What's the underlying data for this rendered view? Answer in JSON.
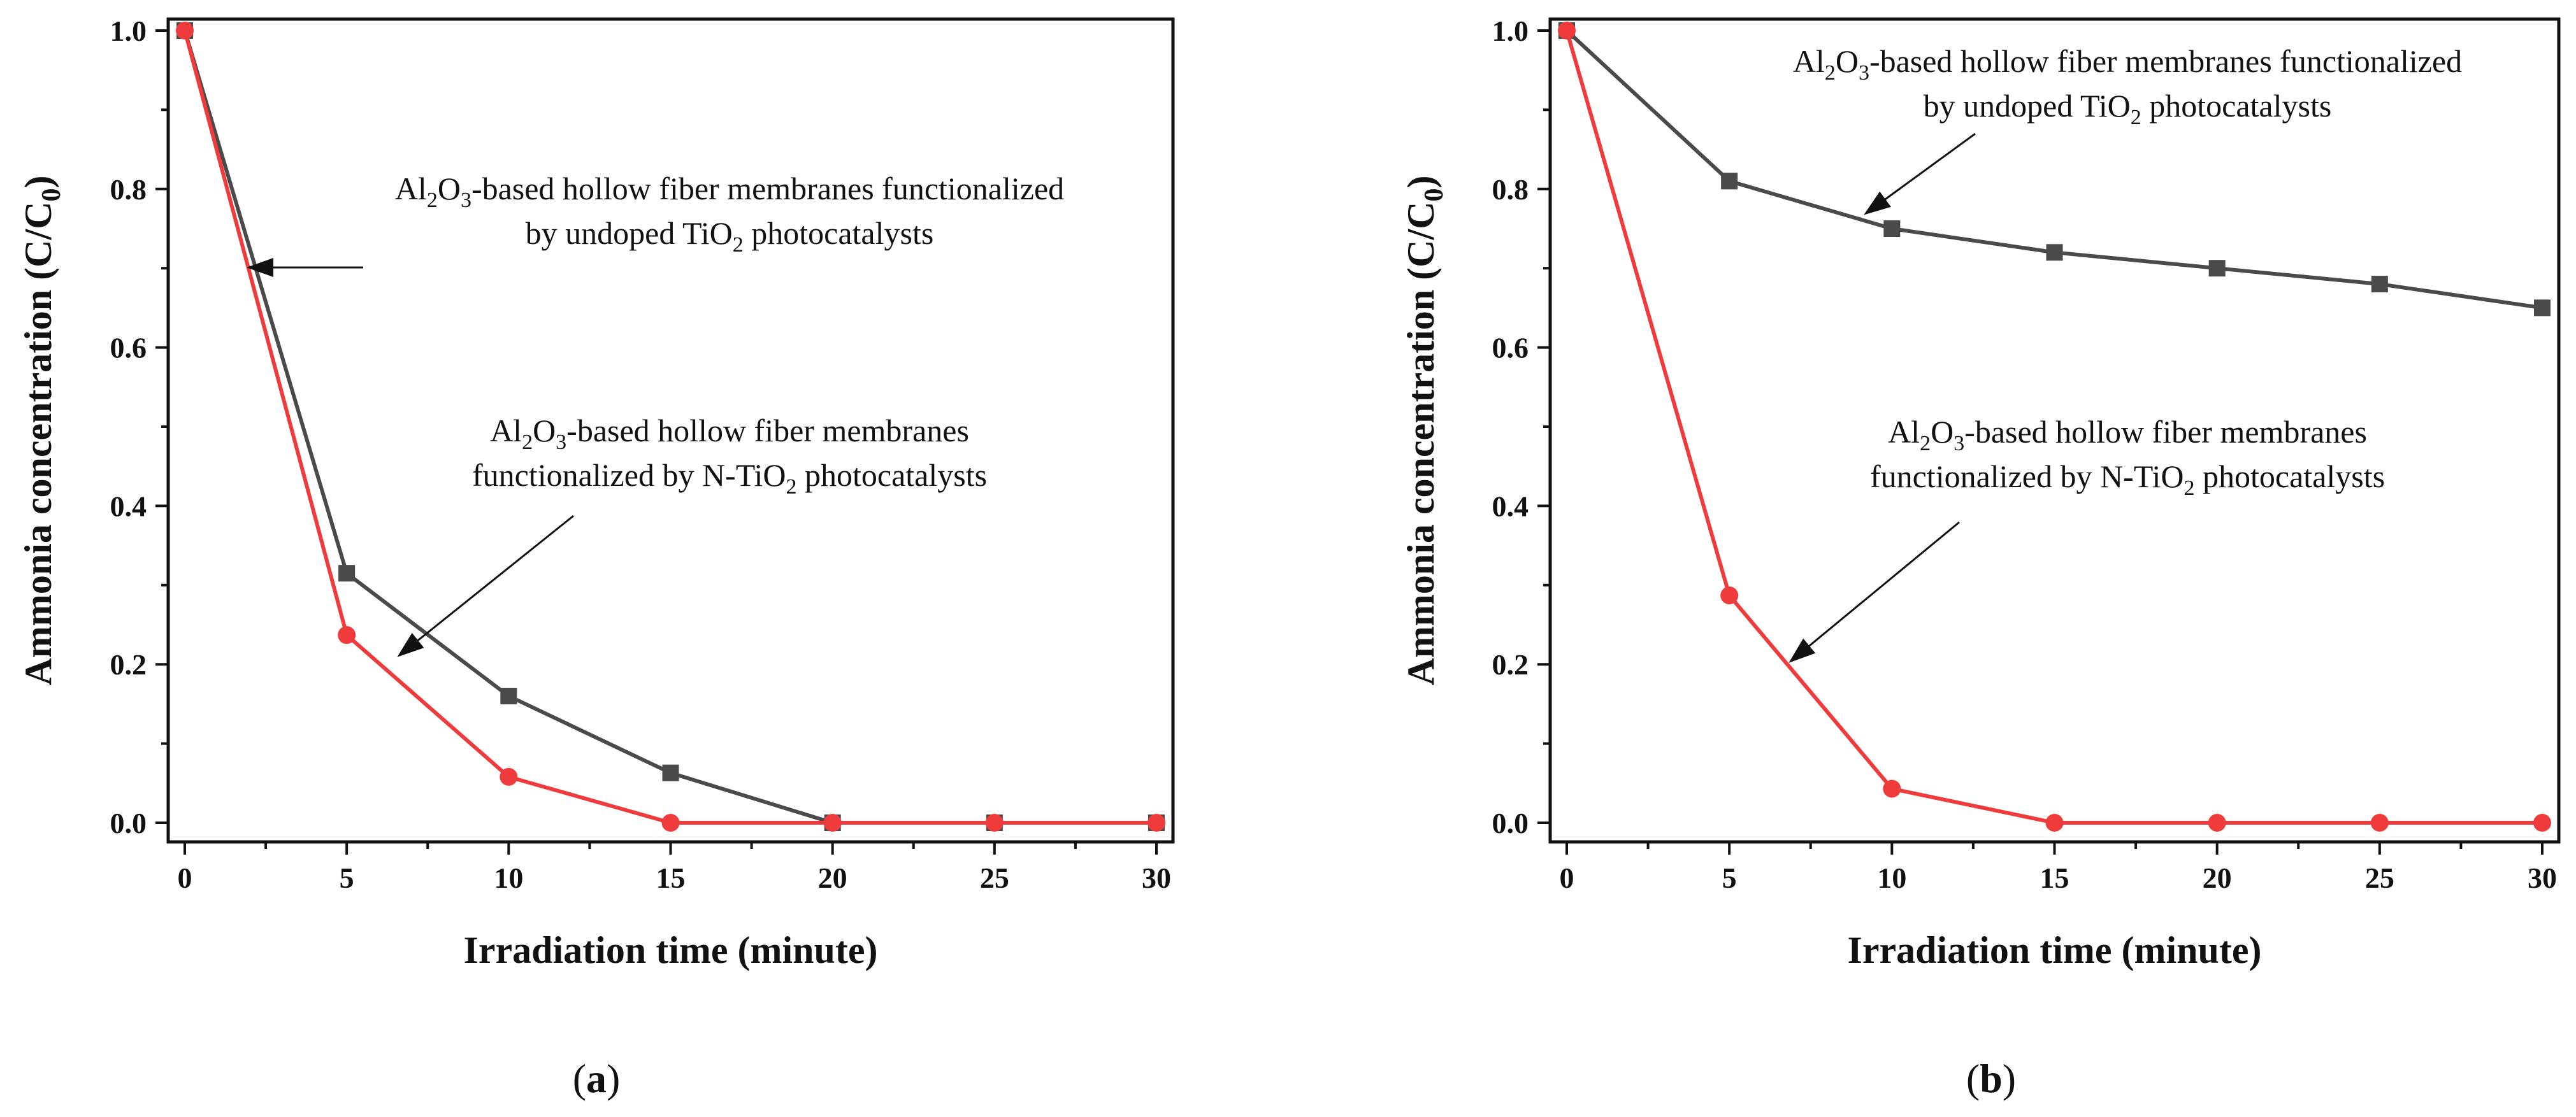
{
  "chart_data": [
    {
      "panel": "a",
      "type": "line",
      "x": [
        0,
        5,
        10,
        15,
        20,
        25,
        30
      ],
      "xlim": [
        0,
        30
      ],
      "ylim": [
        0,
        1.0
      ],
      "xticks": [
        "0",
        "5",
        "10",
        "15",
        "20",
        "25",
        "30"
      ],
      "yticks": [
        "0.0",
        "0.2",
        "0.4",
        "0.6",
        "0.8",
        "1.0"
      ],
      "xlabel": "Irradiation time (minute)",
      "ylabel": "Ammonia concentration (C/C",
      "ylabel_sub": "0",
      "ylabel_end": ")",
      "series": [
        {
          "name": "undoped TiO2",
          "color": "#4a4a4a",
          "marker": "square",
          "values": [
            1.0,
            0.315,
            0.16,
            0.063,
            0.0,
            0.0,
            0.0
          ]
        },
        {
          "name": "N-TiO2",
          "color": "#ef3b3b",
          "marker": "circle",
          "values": [
            1.0,
            0.237,
            0.058,
            0.0,
            0.0,
            0.0,
            0.0
          ]
        }
      ],
      "annotations": [
        {
          "line1": [
            "Al",
            "2",
            "O",
            "3",
            "-based hollow fiber membranes functionalized"
          ],
          "line2": [
            "by undoped TiO",
            "2",
            " photocatalysts"
          ]
        },
        {
          "line1": [
            "Al",
            "2",
            "O",
            "3",
            "-based hollow fiber membranes"
          ],
          "line2": [
            "functionalized by N-TiO",
            "2",
            " photocatalysts"
          ]
        }
      ],
      "panel_label": "a"
    },
    {
      "panel": "b",
      "type": "line",
      "x": [
        0,
        5,
        10,
        15,
        20,
        25,
        30
      ],
      "xlim": [
        0,
        30
      ],
      "ylim": [
        0,
        1.0
      ],
      "xticks": [
        "0",
        "5",
        "10",
        "15",
        "20",
        "25",
        "30"
      ],
      "yticks": [
        "0.0",
        "0.2",
        "0.4",
        "0.6",
        "0.8",
        "1.0"
      ],
      "xlabel": "Irradiation time (minute)",
      "ylabel": "Ammonia concentration (C/C",
      "ylabel_sub": "0",
      "ylabel_end": ")",
      "series": [
        {
          "name": "undoped TiO2",
          "color": "#4a4a4a",
          "marker": "square",
          "values": [
            1.0,
            0.81,
            0.75,
            0.72,
            0.7,
            0.68,
            0.65
          ]
        },
        {
          "name": "N-TiO2",
          "color": "#ef3b3b",
          "marker": "circle",
          "values": [
            1.0,
            0.287,
            0.043,
            0.0,
            0.0,
            0.0,
            0.0
          ]
        }
      ],
      "annotations": [
        {
          "line1": [
            "Al",
            "2",
            "O",
            "3",
            "-based hollow fiber membranes functionalized"
          ],
          "line2": [
            "by undoped TiO",
            "2",
            " photocatalysts"
          ]
        },
        {
          "line1": [
            "Al",
            "2",
            "O",
            "3",
            "-based hollow fiber membranes"
          ],
          "line2": [
            "functionalized by N-TiO",
            "2",
            " photocatalysts"
          ]
        }
      ],
      "panel_label": "b"
    }
  ]
}
